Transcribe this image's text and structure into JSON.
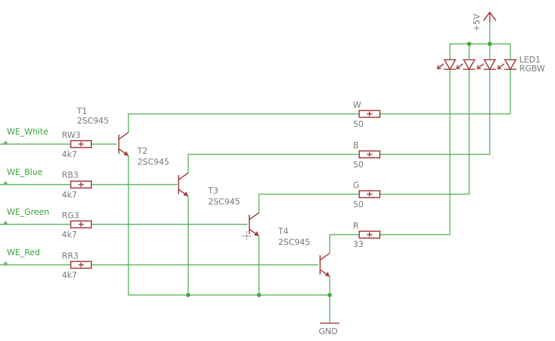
{
  "nets": {
    "white": "WE_White",
    "blue": "WE_Blue",
    "green": "WE_Green",
    "red": "WE_Red"
  },
  "base_resistors": [
    {
      "name": "RW3",
      "value": "4k7"
    },
    {
      "name": "RB3",
      "value": "4k7"
    },
    {
      "name": "RG3",
      "value": "4k7"
    },
    {
      "name": "RR3",
      "value": "4k7"
    }
  ],
  "transistors": [
    {
      "name": "T1",
      "type": "2SC945"
    },
    {
      "name": "T2",
      "type": "2SC945"
    },
    {
      "name": "T3",
      "type": "2SC945"
    },
    {
      "name": "T4",
      "type": "2SC945"
    }
  ],
  "led_resistors": [
    {
      "name": "W",
      "value": "50"
    },
    {
      "name": "B",
      "value": "50"
    },
    {
      "name": "G",
      "value": "50"
    },
    {
      "name": "R",
      "value": "33"
    }
  ],
  "led": {
    "name": "LED1",
    "type": "RGBW"
  },
  "supply": "+5V",
  "ground": "GND",
  "colors": {
    "wire": "#3aa83a",
    "part": "#a33c3c",
    "text": "#7a7a7a"
  }
}
